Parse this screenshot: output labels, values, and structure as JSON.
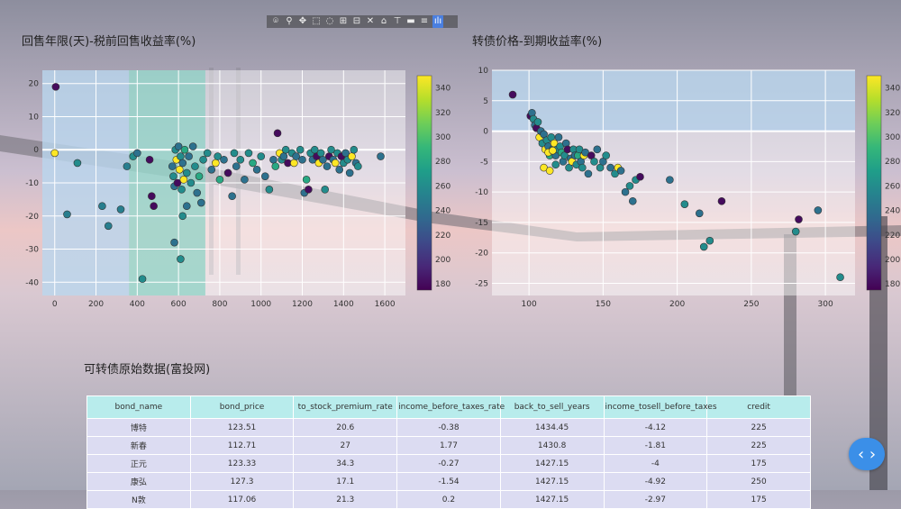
{
  "modebar": {
    "icons": [
      "camera-icon",
      "zoom-icon",
      "pan-icon",
      "box-select-icon",
      "lasso-icon",
      "zoom-in-icon",
      "zoom-out-icon",
      "autoscale-icon",
      "reset-axes-icon",
      "spike-lines-icon",
      "hover-closest-icon",
      "hover-compare-icon",
      "plotly-logo-icon"
    ],
    "glyphs": [
      "⌾",
      "⚲",
      "✥",
      "⬚",
      "◌",
      "⊞",
      "⊟",
      "✕",
      "⌂",
      "⊤",
      "▬",
      "≡",
      "ılı"
    ]
  },
  "chart_data": [
    {
      "type": "scatter",
      "title": "回售年限(天)-税前回售收益率(%)",
      "xlabel": "",
      "ylabel": "",
      "xlim": [
        -60,
        1700
      ],
      "ylim": [
        -44,
        24
      ],
      "xticks": [
        0,
        200,
        400,
        600,
        800,
        1000,
        1200,
        1400,
        1600
      ],
      "yticks": [
        20,
        10,
        0,
        -10,
        -20,
        -30,
        -40
      ],
      "colorbar": {
        "min": 175,
        "max": 350,
        "ticks": [
          180,
          200,
          220,
          240,
          260,
          280,
          300,
          320,
          340
        ],
        "colorscale": "Viridis"
      },
      "shaded_regions": [
        {
          "x0": -60,
          "x1": 360,
          "color": "#a9cdea"
        },
        {
          "x0": 360,
          "x1": 730,
          "color": "#7fd0c0"
        }
      ],
      "points": [
        [
          5,
          19,
          180
        ],
        [
          0,
          -1,
          350
        ],
        [
          110,
          -4,
          260
        ],
        [
          60,
          -19.5,
          250
        ],
        [
          230,
          -17,
          250
        ],
        [
          260,
          -23,
          250
        ],
        [
          320,
          -18,
          250
        ],
        [
          350,
          -5,
          250
        ],
        [
          380,
          -2,
          260
        ],
        [
          400,
          -1,
          240
        ],
        [
          425,
          -39,
          260
        ],
        [
          460,
          -3,
          180
        ],
        [
          470,
          -14,
          180
        ],
        [
          480,
          -17,
          180
        ],
        [
          580,
          -28,
          240
        ],
        [
          610,
          -33,
          260
        ],
        [
          620,
          -20,
          260
        ],
        [
          640,
          -17,
          240
        ],
        [
          570,
          -5,
          240
        ],
        [
          575,
          -8,
          260
        ],
        [
          580,
          -11,
          240
        ],
        [
          585,
          0,
          260
        ],
        [
          590,
          -3,
          350
        ],
        [
          595,
          -10,
          180
        ],
        [
          600,
          1,
          240
        ],
        [
          605,
          -6,
          350
        ],
        [
          610,
          -2,
          260
        ],
        [
          615,
          -12,
          260
        ],
        [
          620,
          -4,
          240
        ],
        [
          625,
          -9,
          350
        ],
        [
          630,
          0,
          280
        ],
        [
          640,
          -7,
          260
        ],
        [
          650,
          -2,
          240
        ],
        [
          660,
          -10,
          260
        ],
        [
          670,
          1,
          240
        ],
        [
          680,
          -5,
          260
        ],
        [
          690,
          -13,
          240
        ],
        [
          700,
          -8,
          280
        ],
        [
          710,
          -16,
          240
        ],
        [
          720,
          -3,
          260
        ],
        [
          740,
          -1,
          260
        ],
        [
          760,
          -6,
          240
        ],
        [
          780,
          -4,
          350
        ],
        [
          790,
          -2,
          260
        ],
        [
          800,
          -9,
          280
        ],
        [
          820,
          -3,
          240
        ],
        [
          840,
          -7,
          180
        ],
        [
          860,
          -14,
          240
        ],
        [
          870,
          -1,
          260
        ],
        [
          880,
          -5,
          240
        ],
        [
          900,
          -3,
          260
        ],
        [
          920,
          -9,
          240
        ],
        [
          940,
          -1,
          260
        ],
        [
          960,
          -4,
          280
        ],
        [
          980,
          -6,
          240
        ],
        [
          1000,
          -2,
          260
        ],
        [
          1020,
          -8,
          240
        ],
        [
          1040,
          -12,
          260
        ],
        [
          1060,
          -3,
          240
        ],
        [
          1070,
          -5,
          280
        ],
        [
          1080,
          5,
          180
        ],
        [
          1090,
          -1,
          350
        ],
        [
          1100,
          -3,
          260
        ],
        [
          1110,
          -2,
          240
        ],
        [
          1120,
          0,
          260
        ],
        [
          1130,
          -4,
          180
        ],
        [
          1150,
          -1,
          260
        ],
        [
          1160,
          -4,
          350
        ],
        [
          1170,
          -2,
          240
        ],
        [
          1190,
          0,
          260
        ],
        [
          1200,
          -3,
          240
        ],
        [
          1210,
          -13,
          240
        ],
        [
          1220,
          -9,
          280
        ],
        [
          1230,
          -12,
          180
        ],
        [
          1240,
          -1,
          260
        ],
        [
          1250,
          -3,
          240
        ],
        [
          1260,
          0,
          260
        ],
        [
          1270,
          -2,
          180
        ],
        [
          1280,
          -4,
          350
        ],
        [
          1290,
          -1,
          260
        ],
        [
          1300,
          -3,
          240
        ],
        [
          1310,
          -12,
          260
        ],
        [
          1320,
          -5,
          240
        ],
        [
          1330,
          -2,
          180
        ],
        [
          1340,
          0,
          260
        ],
        [
          1350,
          -3,
          240
        ],
        [
          1360,
          -4,
          350
        ],
        [
          1370,
          -1,
          260
        ],
        [
          1380,
          -6,
          240
        ],
        [
          1390,
          -2,
          180
        ],
        [
          1400,
          -4,
          260
        ],
        [
          1410,
          -1,
          240
        ],
        [
          1420,
          -3,
          260
        ],
        [
          1430,
          -7,
          240
        ],
        [
          1440,
          -2,
          350
        ],
        [
          1450,
          0,
          260
        ],
        [
          1460,
          -4,
          240
        ],
        [
          1470,
          -5,
          260
        ],
        [
          1580,
          -2,
          240
        ]
      ]
    },
    {
      "type": "scatter",
      "title": "转债价格-到期收益率(%)",
      "xlabel": "",
      "ylabel": "",
      "xlim": [
        75,
        320
      ],
      "ylim": [
        -27,
        10
      ],
      "xticks": [
        100,
        150,
        200,
        250,
        300
      ],
      "yticks": [
        10,
        5,
        0,
        -5,
        -10,
        -15,
        -20,
        -25
      ],
      "colorbar": {
        "min": 175,
        "max": 350,
        "ticks": [
          180,
          200,
          220,
          240,
          260,
          280,
          300,
          320,
          340
        ],
        "colorscale": "Viridis"
      },
      "shaded_regions": [
        {
          "y0": 0,
          "y1": 10,
          "color": "#a9cdea"
        }
      ],
      "points": [
        [
          89,
          6,
          180
        ],
        [
          101,
          2.5,
          180
        ],
        [
          102,
          3,
          240
        ],
        [
          103,
          2,
          260
        ],
        [
          104,
          1,
          240
        ],
        [
          105,
          0.5,
          180
        ],
        [
          106,
          1.5,
          260
        ],
        [
          107,
          -1,
          350
        ],
        [
          108,
          0,
          240
        ],
        [
          109,
          -2,
          260
        ],
        [
          110,
          -0.5,
          240
        ],
        [
          111,
          -3,
          350
        ],
        [
          112,
          -1.5,
          260
        ],
        [
          113,
          -2.5,
          240
        ],
        [
          114,
          -4,
          280
        ],
        [
          115,
          -1,
          260
        ],
        [
          116,
          -3,
          240
        ],
        [
          117,
          -2,
          350
        ],
        [
          118,
          -4,
          240
        ],
        [
          119,
          -3,
          260
        ],
        [
          120,
          -1,
          240
        ],
        [
          121,
          -2.5,
          260
        ],
        [
          122,
          -3.5,
          280
        ],
        [
          123,
          -5,
          240
        ],
        [
          124,
          -4,
          260
        ],
        [
          125,
          -2,
          240
        ],
        [
          126,
          -3,
          180
        ],
        [
          127,
          -6,
          260
        ],
        [
          128,
          -4.5,
          240
        ],
        [
          129,
          -5,
          350
        ],
        [
          130,
          -3,
          260
        ],
        [
          131,
          -4,
          240
        ],
        [
          132,
          -5.5,
          260
        ],
        [
          133,
          -4,
          280
        ],
        [
          134,
          -3,
          260
        ],
        [
          135,
          -5,
          240
        ],
        [
          136,
          -6,
          260
        ],
        [
          137,
          -4,
          350
        ],
        [
          138,
          -3.5,
          240
        ],
        [
          140,
          -7,
          240
        ],
        [
          142,
          -4,
          180
        ],
        [
          144,
          -5,
          260
        ],
        [
          146,
          -3,
          240
        ],
        [
          148,
          -6,
          260
        ],
        [
          150,
          -5,
          240
        ],
        [
          152,
          -4,
          260
        ],
        [
          155,
          -6,
          240
        ],
        [
          158,
          -7,
          260
        ],
        [
          160,
          -6,
          350
        ],
        [
          162,
          -6.5,
          240
        ],
        [
          165,
          -10,
          240
        ],
        [
          168,
          -9,
          260
        ],
        [
          170,
          -11.5,
          240
        ],
        [
          172,
          -8,
          260
        ],
        [
          175,
          -7.5,
          180
        ],
        [
          110,
          -6,
          350
        ],
        [
          114,
          -6.5,
          350
        ],
        [
          113,
          -3.5,
          350
        ],
        [
          116,
          -3.2,
          350
        ],
        [
          118,
          -5.5,
          260
        ],
        [
          195,
          -8,
          240
        ],
        [
          205,
          -12,
          260
        ],
        [
          215,
          -13.5,
          240
        ],
        [
          218,
          -19,
          260
        ],
        [
          222,
          -18,
          260
        ],
        [
          230,
          -11.5,
          180
        ],
        [
          280,
          -16.5,
          260
        ],
        [
          282,
          -14.5,
          180
        ],
        [
          295,
          -13,
          240
        ],
        [
          310,
          -24,
          260
        ]
      ]
    }
  ],
  "table": {
    "title": "可转债原始数据(富投网)",
    "columns": [
      "bond_name",
      "bond_price",
      "to_stock_premium_rate",
      "income_before_taxes_rate",
      "back_to_sell_years",
      "income_tosell_before_taxes",
      "credit"
    ],
    "rows": [
      [
        "博特",
        "123.51",
        "20.6",
        "-0.38",
        "1434.45",
        "-4.12",
        "225"
      ],
      [
        "新春",
        "112.71",
        "27",
        "1.77",
        "1430.8",
        "-1.81",
        "225"
      ],
      [
        "正元",
        "123.33",
        "34.3",
        "-0.27",
        "1427.15",
        "-4",
        "175"
      ],
      [
        "康弘",
        "127.3",
        "17.1",
        "-1.54",
        "1427.15",
        "-4.92",
        "250"
      ],
      [
        "N敦",
        "117.06",
        "21.3",
        "0.2",
        "1427.15",
        "-2.97",
        "175"
      ]
    ]
  },
  "nav_button": {
    "glyph": "‹ ›"
  }
}
